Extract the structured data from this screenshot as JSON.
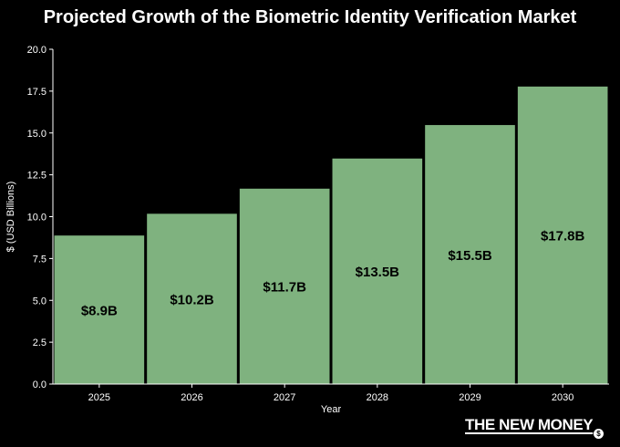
{
  "chart_data": {
    "type": "bar",
    "title": "Projected Growth of the Biometric Identity Verification Market",
    "xlabel": "Year",
    "ylabel": "$ (USD Billions)",
    "categories": [
      "2025",
      "2026",
      "2027",
      "2028",
      "2029",
      "2030"
    ],
    "values": [
      8.9,
      10.2,
      11.7,
      13.5,
      15.5,
      17.8
    ],
    "data_labels": [
      "$8.9B",
      "$10.2B",
      "$11.7B",
      "$13.5B",
      "$15.5B",
      "$17.8B"
    ],
    "ylim": [
      0,
      20
    ],
    "yticks": [
      "0.0",
      "2.5",
      "5.0",
      "7.5",
      "10.0",
      "12.5",
      "15.0",
      "17.5",
      "20.0"
    ],
    "grid": false,
    "colors": {
      "background": "#000000",
      "bar": "#7fb27f",
      "bar_edge": "#000000",
      "axis": "#ffffff",
      "text": "#ffffff",
      "label": "#000000"
    }
  },
  "brand": {
    "name": "THE NEW MONEY",
    "coin_symbol": "$"
  }
}
